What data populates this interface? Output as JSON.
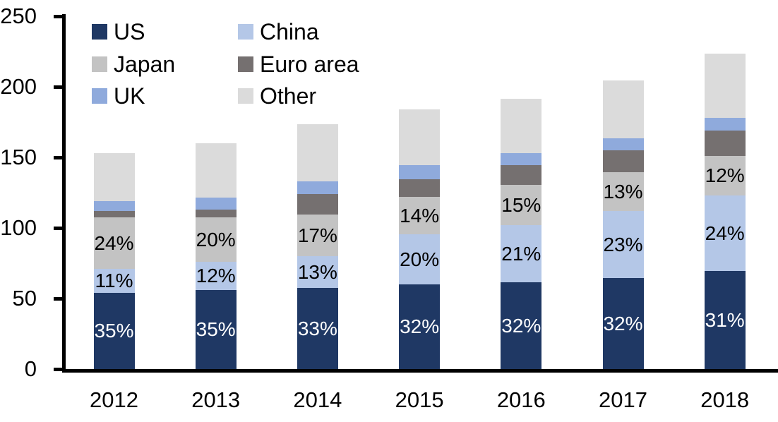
{
  "chart_data": {
    "type": "bar",
    "stacked": true,
    "title": "",
    "xlabel": "",
    "ylabel": "",
    "background_color": "#FFFFFF",
    "axis_color": "#000000",
    "grid": false,
    "legend_position": "top-left",
    "legend_columns": 2,
    "categories": [
      "2012",
      "2013",
      "2014",
      "2015",
      "2016",
      "2017",
      "2018"
    ],
    "ylim": [
      0,
      250
    ],
    "yticks": [
      "0",
      "50",
      "100",
      "150",
      "200",
      "250"
    ],
    "totals": [
      153,
      160,
      173.5,
      184,
      191.5,
      204.5,
      223.5
    ],
    "series": [
      {
        "name": "US",
        "color": "#1F3864",
        "values": [
          54,
          56,
          57.5,
          60,
          61.5,
          64.5,
          69.5
        ],
        "labels": [
          "35%",
          "35%",
          "33%",
          "32%",
          "32%",
          "32%",
          "31%"
        ],
        "label_color": "#FFFFFF"
      },
      {
        "name": "China",
        "color": "#B4C7E7",
        "values": [
          17,
          20,
          22.5,
          35.5,
          40.5,
          47.5,
          53.5
        ],
        "labels": [
          "11%",
          "12%",
          "13%",
          "20%",
          "21%",
          "23%",
          "24%"
        ],
        "label_color": "#000000"
      },
      {
        "name": "Japan",
        "color": "#C3C3C3",
        "values": [
          36.5,
          31.5,
          29.5,
          26.5,
          28.5,
          27.5,
          28
        ],
        "labels": [
          "24%",
          "20%",
          "17%",
          "14%",
          "15%",
          "13%",
          "12%"
        ],
        "label_color": "#000000"
      },
      {
        "name": "Euro area",
        "color": "#757070",
        "values": [
          4.5,
          5.5,
          14.5,
          12.5,
          14,
          15.5,
          18
        ],
        "labels": null,
        "label_color": null
      },
      {
        "name": "UK",
        "color": "#8FAADC",
        "values": [
          7,
          8.5,
          9,
          10,
          8.5,
          8.5,
          9
        ],
        "labels": null,
        "label_color": null
      },
      {
        "name": "Other",
        "color": "#DBDBDB",
        "values": [
          34,
          38.5,
          40.5,
          39.5,
          38.5,
          41,
          45.5
        ],
        "labels": null,
        "label_color": null
      }
    ]
  }
}
